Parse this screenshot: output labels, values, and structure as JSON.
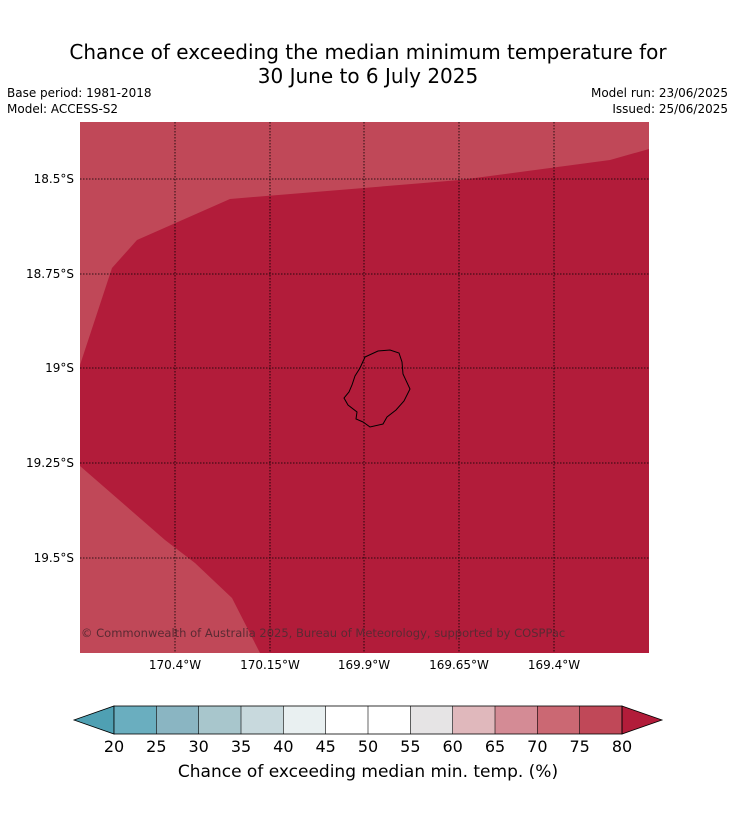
{
  "title_line1": "Chance of exceeding the median minimum temperature for",
  "title_line2": "30 June to 6 July 2025",
  "meta": {
    "base_period": "Base period: 1981-2018",
    "model": "Model: ACCESS-S2",
    "model_run": "Model run: 23/06/2025",
    "issued": "Issued: 25/06/2025"
  },
  "map": {
    "lat_labels": [
      "18.5°S",
      "18.75°S",
      "19°S",
      "19.25°S",
      "19.5°S"
    ],
    "lon_labels": [
      "170.4°W",
      "170.15°W",
      "169.9°W",
      "169.65°W",
      "169.4°W"
    ],
    "copyright": "© Commonwealth of Australia 2025, Bureau of Meteorology, supported by COSPPac",
    "fill_colors": {
      "above_80": "#b21c3a",
      "band_75_80": "#c04858"
    }
  },
  "colorbar": {
    "title": "Chance of exceeding median min. temp. (%)",
    "ticks": [
      "20",
      "25",
      "30",
      "35",
      "40",
      "45",
      "50",
      "55",
      "60",
      "65",
      "70",
      "75",
      "80"
    ],
    "colors": [
      "#4fa0b3",
      "#6aaebf",
      "#8ab5c2",
      "#a8c6cc",
      "#c8d9dd",
      "#e9f0f1",
      "#ffffff",
      "#ffffff",
      "#e6e4e5",
      "#e0b8bc",
      "#d48b95",
      "#cb6873",
      "#c04858",
      "#b21c3a"
    ]
  }
}
